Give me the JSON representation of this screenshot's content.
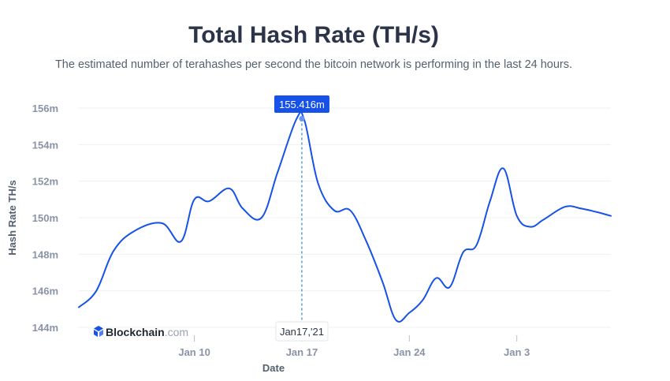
{
  "colors": {
    "line": "#1652e8",
    "grid": "#eef0f4",
    "tooltip_bg": "#1652e8",
    "marker": "#6a97f5",
    "brand_icon": "#1652e8"
  },
  "brand": {
    "icon": "blockchain-cube-icon",
    "name": "Blockchain",
    "suffix": ".com"
  },
  "chart_data": {
    "type": "line",
    "title": "Total Hash Rate (TH/s)",
    "subtitle": "The estimated number of terahashes per second the bitcoin network is performing in the last 24 hours.",
    "xlabel": "Date",
    "ylabel": "Hash Rate TH/s",
    "ylim": [
      144,
      156
    ],
    "xlim": [
      -0.3,
      19.5
    ],
    "grid": true,
    "legend": "none",
    "yticks": [
      {
        "value": 144,
        "label": "144m"
      },
      {
        "value": 146,
        "label": "146m"
      },
      {
        "value": 148,
        "label": "148m"
      },
      {
        "value": 150,
        "label": "150m"
      },
      {
        "value": 152,
        "label": "152m"
      },
      {
        "value": 154,
        "label": "154m"
      },
      {
        "value": 156,
        "label": "156m"
      }
    ],
    "xticks": [
      {
        "value": 4,
        "label": "Jan 10"
      },
      {
        "value": 8,
        "label": "Jan 17"
      },
      {
        "value": 12,
        "label": "Jan 24"
      },
      {
        "value": 16,
        "label": "Jan 3"
      }
    ],
    "highlight": {
      "x": 8,
      "y": 155.416,
      "label": "155.416m",
      "date_label": "Jan17,'21"
    },
    "series": [
      {
        "x": [
          -0.3,
          0.35,
          1.0,
          1.8,
          2.8,
          3.5,
          4.0,
          4.55,
          5.3,
          5.8,
          6.5,
          7.1,
          7.8,
          8.1,
          8.6,
          9.2,
          9.8,
          10.4,
          11.0,
          11.5,
          12.0,
          12.5,
          13.0,
          13.5,
          14.0,
          14.5,
          15.0,
          15.5,
          16.0,
          16.5,
          17.0,
          17.8,
          18.4,
          19.0,
          19.5
        ],
        "values": [
          145.1,
          146.0,
          148.2,
          149.3,
          149.7,
          148.7,
          151.0,
          150.9,
          151.6,
          150.5,
          150.0,
          152.5,
          155.4,
          155.3,
          151.9,
          150.4,
          150.4,
          148.7,
          146.5,
          144.4,
          144.8,
          145.5,
          146.7,
          146.2,
          148.1,
          148.5,
          150.9,
          152.7,
          150.1,
          149.5,
          149.9,
          150.6,
          150.5,
          150.3,
          150.1
        ]
      }
    ]
  }
}
